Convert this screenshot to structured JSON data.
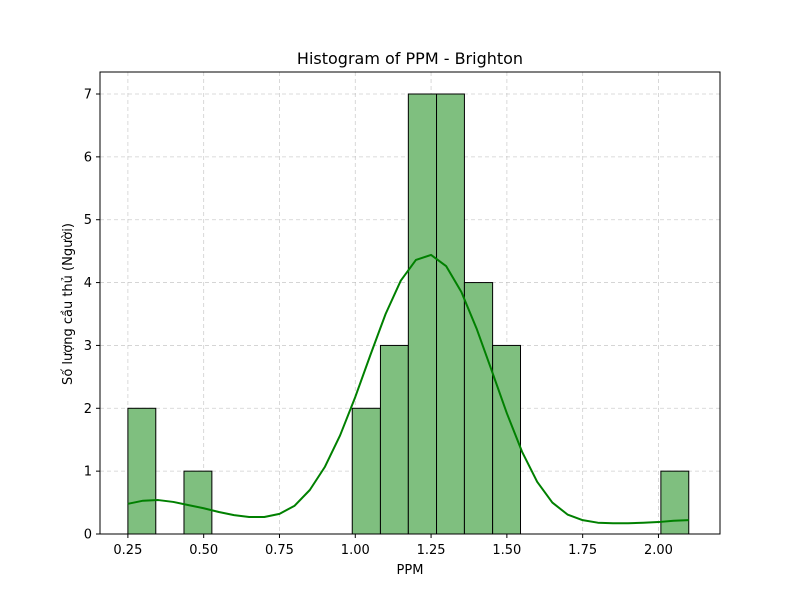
{
  "chart_data": {
    "type": "bar",
    "title": "Histogram of PPM - Brighton",
    "xlabel": "PPM",
    "ylabel": "Số lượng cầu thủ (Người)",
    "xlim": [
      0.158,
      2.203
    ],
    "ylim": [
      0,
      7.35
    ],
    "xticks": [
      0.25,
      0.5,
      0.75,
      1.0,
      1.25,
      1.5,
      1.75,
      2.0
    ],
    "xtick_labels": [
      "0.25",
      "0.50",
      "0.75",
      "1.00",
      "1.25",
      "1.50",
      "1.75",
      "2.00"
    ],
    "yticks": [
      0,
      1,
      2,
      3,
      4,
      5,
      6,
      7
    ],
    "ytick_labels": [
      "0",
      "1",
      "2",
      "3",
      "4",
      "5",
      "6",
      "7"
    ],
    "grid": true,
    "bars": [
      {
        "x0": 0.25,
        "x1": 0.342,
        "count": 2
      },
      {
        "x0": 0.435,
        "x1": 0.527,
        "count": 1
      },
      {
        "x0": 0.99,
        "x1": 1.083,
        "count": 2
      },
      {
        "x0": 1.083,
        "x1": 1.175,
        "count": 3
      },
      {
        "x0": 1.175,
        "x1": 1.268,
        "count": 7
      },
      {
        "x0": 1.268,
        "x1": 1.36,
        "count": 7
      },
      {
        "x0": 1.36,
        "x1": 1.453,
        "count": 4
      },
      {
        "x0": 1.453,
        "x1": 1.545,
        "count": 3
      },
      {
        "x0": 2.008,
        "x1": 2.1,
        "count": 1
      }
    ],
    "kde": {
      "x": [
        0.25,
        0.3,
        0.35,
        0.4,
        0.45,
        0.5,
        0.55,
        0.6,
        0.65,
        0.7,
        0.75,
        0.8,
        0.85,
        0.9,
        0.95,
        1.0,
        1.05,
        1.1,
        1.15,
        1.2,
        1.25,
        1.3,
        1.35,
        1.4,
        1.45,
        1.5,
        1.55,
        1.6,
        1.65,
        1.7,
        1.75,
        1.8,
        1.85,
        1.9,
        1.95,
        2.0,
        2.05,
        2.1
      ],
      "y": [
        0.48,
        0.53,
        0.54,
        0.51,
        0.46,
        0.41,
        0.35,
        0.3,
        0.27,
        0.27,
        0.32,
        0.45,
        0.7,
        1.07,
        1.57,
        2.18,
        2.85,
        3.5,
        4.03,
        4.36,
        4.44,
        4.26,
        3.85,
        3.27,
        2.6,
        1.92,
        1.31,
        0.83,
        0.5,
        0.31,
        0.22,
        0.18,
        0.17,
        0.17,
        0.18,
        0.19,
        0.21,
        0.22
      ]
    },
    "colors": {
      "bar_fill": "#7fbf7f",
      "bar_edge": "#000000",
      "kde_line": "#008000"
    }
  }
}
